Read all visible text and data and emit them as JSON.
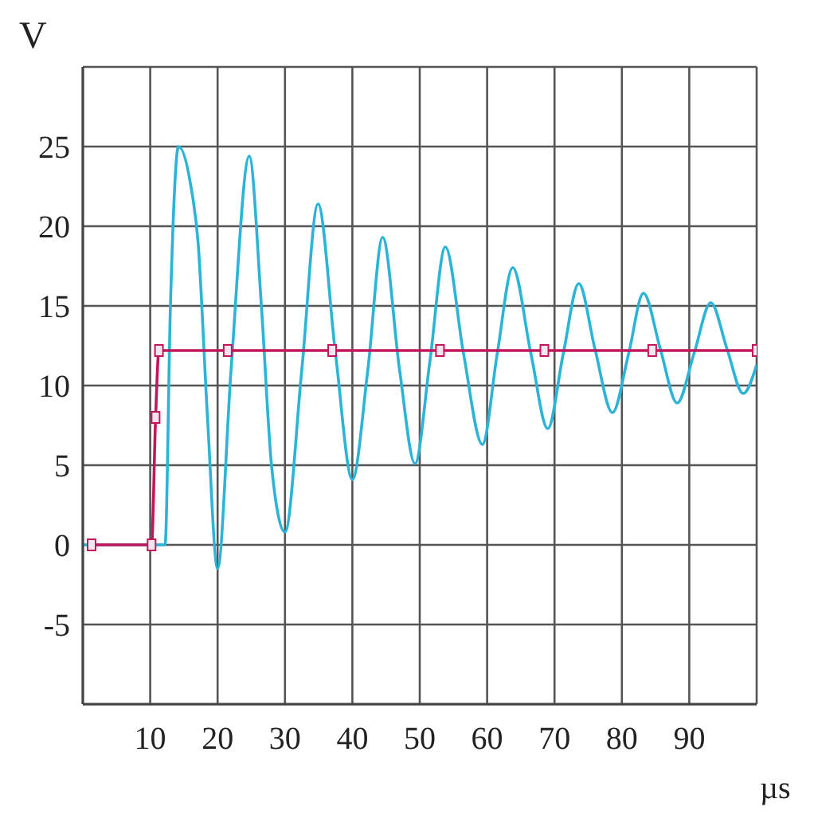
{
  "chart_data": {
    "type": "line",
    "xlabel": "µs",
    "ylabel": "V",
    "xlim": [
      0,
      100
    ],
    "ylim": [
      -10,
      30
    ],
    "xticks": [
      10,
      20,
      30,
      40,
      50,
      60,
      70,
      80,
      90
    ],
    "yticks": [
      -5,
      0,
      5,
      10,
      15,
      20,
      25
    ],
    "grid": true,
    "series": [
      {
        "color": "#2cb3d8",
        "marker": "none",
        "x": [
          0,
          12.2,
          13,
          14.2,
          16,
          17.1,
          18.5,
          20,
          22,
          24.7,
          26.5,
          28,
          30,
          32.5,
          34.9,
          37.5,
          40,
          42.3,
          44.5,
          47,
          49.3,
          51.5,
          53.8,
          56.5,
          59.3,
          61.5,
          63.8,
          66.5,
          69,
          71.3,
          73.6,
          76,
          78.6,
          81,
          83.2,
          85.7,
          88.2,
          90.7,
          93.2,
          95.6,
          98,
          100
        ],
        "values": [
          0,
          0,
          15,
          25,
          22.6,
          19,
          8,
          -1.5,
          11,
          24.4,
          15,
          5,
          0.8,
          11,
          21.4,
          12,
          4.1,
          11,
          19.3,
          11,
          5.1,
          11.5,
          18.7,
          12,
          6.3,
          12,
          17.4,
          12,
          7.3,
          12,
          16.4,
          12.3,
          8.3,
          12,
          15.8,
          12.3,
          8.9,
          12,
          15.2,
          12.3,
          9.5,
          11.3
        ]
      },
      {
        "color": "#c2185b",
        "marker": "square",
        "x": [
          1.3,
          10.2,
          10.8,
          11.3,
          21.5,
          37,
          53,
          68.5,
          84.5,
          100
        ],
        "values": [
          0,
          0,
          8,
          12.2,
          12.2,
          12.2,
          12.2,
          12.2,
          12.2,
          12.2
        ]
      }
    ]
  }
}
